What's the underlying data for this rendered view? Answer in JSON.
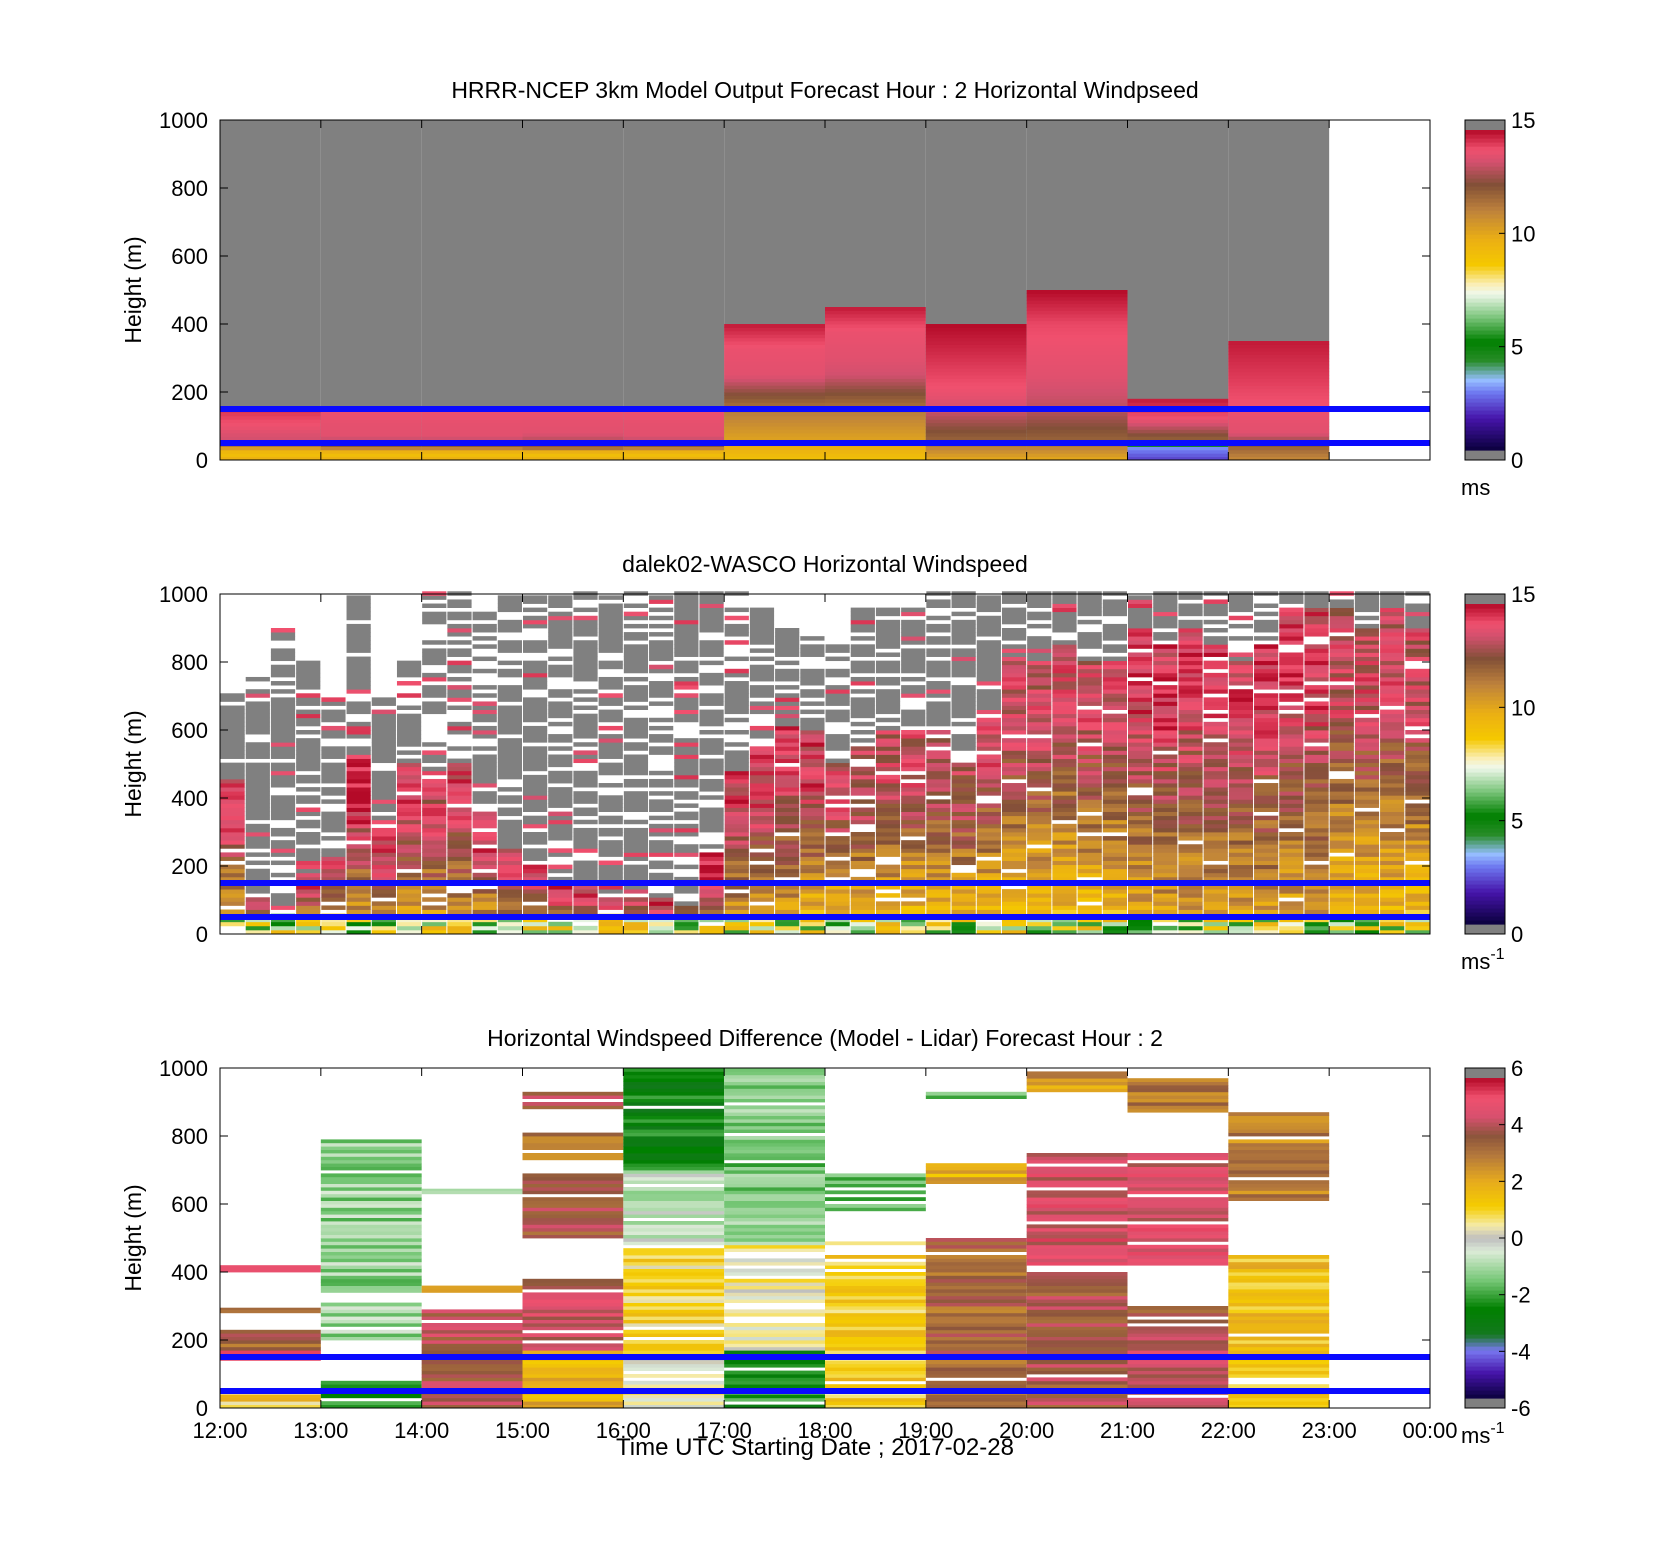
{
  "xaxis": {
    "ticks": [
      "12:00",
      "13:00",
      "14:00",
      "15:00",
      "16:00",
      "17:00",
      "18:00",
      "19:00",
      "20:00",
      "21:00",
      "22:00",
      "23:00",
      "00:00"
    ],
    "label": "Time UTC  Starting Date ; 2017-02-28"
  },
  "reference_lines_m": [
    150,
    50
  ],
  "reference_line_color": "#0a0aff",
  "chart_data": [
    {
      "type": "heatmap",
      "title": "HRRR-NCEP 3km Model Output   Forecast Hour : 2 Horizontal Windpseed",
      "ylabel": "Height (m)",
      "ylim": [
        0,
        1000
      ],
      "yticks": [
        "0",
        "200",
        "400",
        "600",
        "800",
        "1000"
      ],
      "colorbar": {
        "range": [
          0,
          15
        ],
        "ticks": [
          "0",
          "5",
          "10",
          "15"
        ],
        "unit": "ms",
        "unit_sup": "",
        "out_of_range_color": "#808080"
      },
      "columns": [
        {
          "start": "12:00",
          "top_m": 150,
          "profile": [
            [
              0,
              10
            ],
            [
              20,
              9
            ],
            [
              40,
              11
            ],
            [
              60,
              13.5
            ],
            [
              100,
              14
            ],
            [
              150,
              14.5
            ]
          ]
        },
        {
          "start": "13:00",
          "top_m": 150,
          "profile": [
            [
              0,
              10
            ],
            [
              20,
              9
            ],
            [
              40,
              12
            ],
            [
              70,
              13.8
            ],
            [
              150,
              14
            ]
          ]
        },
        {
          "start": "14:00",
          "top_m": 150,
          "profile": [
            [
              0,
              10
            ],
            [
              20,
              9
            ],
            [
              40,
              12
            ],
            [
              70,
              13.8
            ],
            [
              150,
              14
            ]
          ]
        },
        {
          "start": "15:00",
          "top_m": 150,
          "profile": [
            [
              0,
              10
            ],
            [
              20,
              9
            ],
            [
              40,
              12.5
            ],
            [
              80,
              13.8
            ],
            [
              150,
              14
            ]
          ]
        },
        {
          "start": "16:00",
          "top_m": 150,
          "profile": [
            [
              0,
              10
            ],
            [
              20,
              9
            ],
            [
              40,
              12
            ],
            [
              70,
              13.8
            ],
            [
              150,
              14
            ]
          ]
        },
        {
          "start": "17:00",
          "top_m": 400,
          "profile": [
            [
              0,
              9
            ],
            [
              40,
              10
            ],
            [
              150,
              11.5
            ],
            [
              250,
              13.8
            ],
            [
              330,
              14
            ],
            [
              400,
              14.8
            ]
          ]
        },
        {
          "start": "18:00",
          "top_m": 450,
          "profile": [
            [
              0,
              9
            ],
            [
              40,
              10
            ],
            [
              150,
              11.5
            ],
            [
              250,
              13.5
            ],
            [
              300,
              13.8
            ],
            [
              380,
              14
            ],
            [
              450,
              14.8
            ]
          ]
        },
        {
          "start": "19:00",
          "top_m": 400,
          "profile": [
            [
              0,
              10
            ],
            [
              60,
              12
            ],
            [
              150,
              13.5
            ],
            [
              200,
              14
            ],
            [
              300,
              14.5
            ],
            [
              400,
              15
            ]
          ]
        },
        {
          "start": "20:00",
          "top_m": 500,
          "profile": [
            [
              0,
              10
            ],
            [
              60,
              12
            ],
            [
              150,
              13.2
            ],
            [
              250,
              13.8
            ],
            [
              400,
              14.2
            ],
            [
              500,
              15
            ]
          ]
        },
        {
          "start": "21:00",
          "top_m": 180,
          "profile": [
            [
              0,
              2
            ],
            [
              40,
              3
            ],
            [
              60,
              12
            ],
            [
              120,
              14
            ],
            [
              180,
              14.8
            ]
          ]
        },
        {
          "start": "22:00",
          "top_m": 350,
          "profile": [
            [
              0,
              11
            ],
            [
              40,
              12
            ],
            [
              80,
              13.8
            ],
            [
              200,
              14.2
            ],
            [
              350,
              14.8
            ]
          ]
        }
      ]
    },
    {
      "type": "heatmap",
      "title": "dalek02-WASCO  Horizontal Windspeed",
      "ylabel": "Height (m)",
      "ylim": [
        0,
        1000
      ],
      "yticks": [
        "0",
        "200",
        "400",
        "600",
        "800",
        "1000"
      ],
      "colorbar": {
        "range": [
          0,
          15
        ],
        "ticks": [
          "0",
          "5",
          "10",
          "15"
        ],
        "unit": "ms",
        "unit_sup": "-1",
        "out_of_range_color": "#808080"
      },
      "bin_minutes": 15,
      "bins": [
        {
          "start": "12:00",
          "data_top_m": 700,
          "speed_top_m": 450,
          "low": 9,
          "high": 14
        },
        {
          "start": "12:15",
          "data_top_m": 750,
          "speed_top_m": 100,
          "low": 9,
          "high": 13
        },
        {
          "start": "12:30",
          "data_top_m": 900,
          "speed_top_m": 50,
          "low": 10,
          "high": 12
        },
        {
          "start": "12:45",
          "data_top_m": 800,
          "speed_top_m": 180,
          "low": 9,
          "high": 14
        },
        {
          "start": "13:00",
          "data_top_m": 700,
          "speed_top_m": 220,
          "low": 10,
          "high": 14
        },
        {
          "start": "13:15",
          "data_top_m": 1000,
          "speed_top_m": 520,
          "low": 10,
          "high": 14.5
        },
        {
          "start": "13:30",
          "data_top_m": 700,
          "speed_top_m": 300,
          "low": 10,
          "high": 14
        },
        {
          "start": "13:45",
          "data_top_m": 800,
          "speed_top_m": 500,
          "low": 10,
          "high": 14
        },
        {
          "start": "14:00",
          "data_top_m": 1000,
          "speed_top_m": 450,
          "low": 10,
          "high": 13.5
        },
        {
          "start": "14:15",
          "data_top_m": 1000,
          "speed_top_m": 500,
          "low": 10,
          "high": 14
        },
        {
          "start": "14:30",
          "data_top_m": 950,
          "speed_top_m": 350,
          "low": 10,
          "high": 14
        },
        {
          "start": "14:45",
          "data_top_m": 1000,
          "speed_top_m": 250,
          "low": 10,
          "high": 14
        },
        {
          "start": "15:00",
          "data_top_m": 1000,
          "speed_top_m": 200,
          "low": 10,
          "high": 14
        },
        {
          "start": "15:15",
          "data_top_m": 1000,
          "speed_top_m": 150,
          "low": 10,
          "high": 14.5
        },
        {
          "start": "15:30",
          "data_top_m": 1000,
          "speed_top_m": 150,
          "low": 10,
          "high": 14
        },
        {
          "start": "15:45",
          "data_top_m": 1000,
          "speed_top_m": 100,
          "low": 10,
          "high": 14
        },
        {
          "start": "16:00",
          "data_top_m": 1000,
          "speed_top_m": 130,
          "low": 10,
          "high": 14
        },
        {
          "start": "16:15",
          "data_top_m": 1000,
          "speed_top_m": 100,
          "low": 10,
          "high": 14
        },
        {
          "start": "16:30",
          "data_top_m": 1000,
          "speed_top_m": 80,
          "low": 10,
          "high": 13
        },
        {
          "start": "16:45",
          "data_top_m": 1000,
          "speed_top_m": 230,
          "low": 10,
          "high": 14.5
        },
        {
          "start": "17:00",
          "data_top_m": 1000,
          "speed_top_m": 480,
          "low": 10,
          "high": 14
        },
        {
          "start": "17:15",
          "data_top_m": 950,
          "speed_top_m": 550,
          "low": 10,
          "high": 14
        },
        {
          "start": "17:30",
          "data_top_m": 900,
          "speed_top_m": 610,
          "low": 10,
          "high": 14
        },
        {
          "start": "17:45",
          "data_top_m": 900,
          "speed_top_m": 600,
          "low": 9,
          "high": 14
        },
        {
          "start": "18:00",
          "data_top_m": 850,
          "speed_top_m": 500,
          "low": 9,
          "high": 13.5
        },
        {
          "start": "18:15",
          "data_top_m": 950,
          "speed_top_m": 550,
          "low": 9,
          "high": 13.5
        },
        {
          "start": "18:30",
          "data_top_m": 950,
          "speed_top_m": 600,
          "low": 9,
          "high": 13.5
        },
        {
          "start": "18:45",
          "data_top_m": 950,
          "speed_top_m": 600,
          "low": 9,
          "high": 13.5
        },
        {
          "start": "19:00",
          "data_top_m": 1000,
          "speed_top_m": 600,
          "low": 9,
          "high": 13.5
        },
        {
          "start": "19:15",
          "data_top_m": 1000,
          "speed_top_m": 500,
          "low": 9,
          "high": 13
        },
        {
          "start": "19:30",
          "data_top_m": 1000,
          "speed_top_m": 650,
          "low": 9,
          "high": 13.5
        },
        {
          "start": "19:45",
          "data_top_m": 1000,
          "speed_top_m": 800,
          "low": 9,
          "high": 13.5
        },
        {
          "start": "20:00",
          "data_top_m": 1000,
          "speed_top_m": 800,
          "low": 9,
          "high": 13.5
        },
        {
          "start": "20:15",
          "data_top_m": 1000,
          "speed_top_m": 850,
          "low": 9,
          "high": 13.5
        },
        {
          "start": "20:30",
          "data_top_m": 1000,
          "speed_top_m": 800,
          "low": 9,
          "high": 13.5
        },
        {
          "start": "20:45",
          "data_top_m": 1000,
          "speed_top_m": 800,
          "low": 9,
          "high": 13.5
        },
        {
          "start": "21:00",
          "data_top_m": 1000,
          "speed_top_m": 900,
          "low": 10,
          "high": 14
        },
        {
          "start": "21:15",
          "data_top_m": 1000,
          "speed_top_m": 850,
          "low": 10,
          "high": 14
        },
        {
          "start": "21:30",
          "data_top_m": 1000,
          "speed_top_m": 900,
          "low": 10,
          "high": 14
        },
        {
          "start": "21:45",
          "data_top_m": 1000,
          "speed_top_m": 850,
          "low": 10,
          "high": 14
        },
        {
          "start": "22:00",
          "data_top_m": 1000,
          "speed_top_m": 800,
          "low": 10,
          "high": 14
        },
        {
          "start": "22:15",
          "data_top_m": 1000,
          "speed_top_m": 850,
          "low": 10,
          "high": 14
        },
        {
          "start": "22:30",
          "data_top_m": 1000,
          "speed_top_m": 950,
          "low": 10,
          "high": 14
        },
        {
          "start": "22:45",
          "data_top_m": 1000,
          "speed_top_m": 950,
          "low": 10,
          "high": 14
        },
        {
          "start": "23:00",
          "data_top_m": 1000,
          "speed_top_m": 950,
          "low": 9,
          "high": 13.5
        },
        {
          "start": "23:15",
          "data_top_m": 1000,
          "speed_top_m": 900,
          "low": 9,
          "high": 13.5
        },
        {
          "start": "23:30",
          "data_top_m": 1000,
          "speed_top_m": 950,
          "low": 9,
          "high": 13.5
        },
        {
          "start": "23:45",
          "data_top_m": 1000,
          "speed_top_m": 900,
          "low": 9,
          "high": 13.5
        }
      ]
    },
    {
      "type": "heatmap",
      "title": "Horizontal Windspeed Difference (Model - Lidar) Forecast Hour : 2",
      "ylabel": "Height (m)",
      "ylim": [
        0,
        1000
      ],
      "yticks": [
        "0",
        "200",
        "400",
        "600",
        "800",
        "1000"
      ],
      "colorbar": {
        "range": [
          -6,
          6
        ],
        "ticks": [
          "-6",
          "-4",
          "-2",
          "0",
          "2",
          "4",
          "6"
        ],
        "unit": "ms",
        "unit_sup": "-1",
        "out_of_range_color": "#808080"
      },
      "columns": [
        {
          "start": "12:00",
          "segments": [
            [
              0,
              20,
              0.5
            ],
            [
              20,
              40,
              2
            ],
            [
              140,
              170,
              5.5
            ],
            [
              170,
              230,
              3.5
            ],
            [
              280,
              295,
              3
            ],
            [
              400,
              420,
              5
            ]
          ]
        },
        {
          "start": "13:00",
          "segments": [
            [
              0,
              80,
              -2.5
            ],
            [
              200,
              790,
              -1.2
            ]
          ]
        },
        {
          "start": "14:00",
          "segments": [
            [
              0,
              290,
              4.2
            ],
            [
              340,
              360,
              3
            ],
            [
              630,
              645,
              -1.5
            ]
          ]
        },
        {
          "start": "15:00",
          "segments": [
            [
              0,
              170,
              2
            ],
            [
              170,
              380,
              4.5
            ],
            [
              500,
              690,
              3.8
            ],
            [
              730,
              810,
              3
            ],
            [
              880,
              930,
              4
            ]
          ]
        },
        {
          "start": "16:00",
          "segments": [
            [
              0,
              160,
              0.2
            ],
            [
              160,
              480,
              1
            ],
            [
              480,
              700,
              -0.6
            ],
            [
              700,
              1000,
              -2.8
            ]
          ]
        },
        {
          "start": "17:00",
          "segments": [
            [
              0,
              170,
              -2.5
            ],
            [
              170,
              480,
              0.3
            ],
            [
              480,
              1000,
              -1.5
            ]
          ]
        },
        {
          "start": "18:00",
          "segments": [
            [
              0,
              500,
              1.2
            ],
            [
              580,
              690,
              -1.8
            ]
          ]
        },
        {
          "start": "19:00",
          "segments": [
            [
              0,
              500,
              3.5
            ],
            [
              650,
              720,
              2
            ],
            [
              910,
              930,
              -1.5
            ]
          ]
        },
        {
          "start": "20:00",
          "segments": [
            [
              0,
              400,
              4
            ],
            [
              400,
              750,
              4.8
            ],
            [
              930,
              990,
              2.5
            ]
          ]
        },
        {
          "start": "21:00",
          "segments": [
            [
              0,
              230,
              4.2
            ],
            [
              230,
              300,
              3.5
            ],
            [
              420,
              750,
              4.8
            ],
            [
              870,
              970,
              3.2
            ]
          ]
        },
        {
          "start": "22:00",
          "segments": [
            [
              0,
              450,
              1.5
            ],
            [
              610,
              870,
              3
            ]
          ]
        }
      ]
    }
  ]
}
